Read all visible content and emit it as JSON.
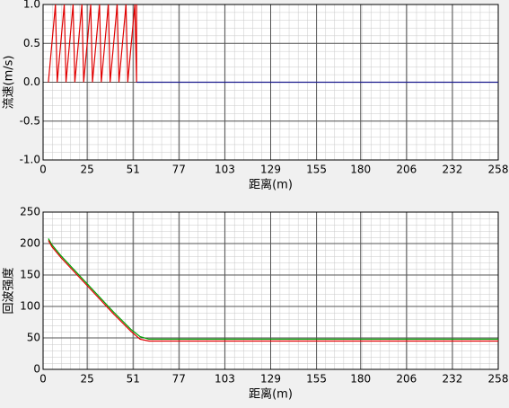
{
  "chart_data": [
    {
      "type": "line",
      "xlabel": "距离(m)",
      "ylabel": "流速(m/s)",
      "xlim": [
        0,
        258
      ],
      "xticks": [
        0,
        25,
        51,
        77,
        103,
        129,
        155,
        180,
        206,
        232,
        258
      ],
      "ylim": [
        -1,
        1
      ],
      "yticks": [
        {
          "value": -1,
          "label": "-1.0"
        },
        -0.5,
        {
          "value": 0,
          "label": "0.0"
        },
        0.5,
        {
          "value": 1,
          "label": "1.0"
        }
      ],
      "grid": true,
      "series": [
        {
          "color": "#e00000",
          "x": [
            3,
            7,
            8,
            12,
            13,
            17,
            18,
            22,
            23,
            27,
            28,
            32,
            33,
            37,
            38,
            42,
            43,
            47,
            48,
            52,
            53,
            53
          ],
          "values": [
            0,
            1,
            0,
            1,
            0,
            1,
            0,
            1,
            0,
            1,
            0,
            1,
            0,
            1,
            0,
            1,
            0,
            1,
            0,
            1,
            0,
            1
          ]
        },
        {
          "color": "#1a1a8c",
          "x": [
            53,
            258
          ],
          "values": [
            0,
            0
          ]
        }
      ]
    },
    {
      "type": "line",
      "xlabel": "距离(m)",
      "ylabel": "回波强度",
      "xlim": [
        0,
        258
      ],
      "xticks": [
        0,
        25,
        51,
        77,
        103,
        129,
        155,
        180,
        206,
        232,
        258
      ],
      "ylim": [
        0,
        250
      ],
      "yticks": [
        0,
        50,
        100,
        150,
        200,
        250
      ],
      "grid": true,
      "series": [
        {
          "color": "#00a000",
          "x": [
            3,
            5,
            10,
            20,
            30,
            40,
            50,
            55,
            60,
            258
          ],
          "values": [
            208,
            198,
            181,
            151,
            121,
            91,
            63,
            52,
            48,
            48
          ]
        },
        {
          "color": "#e00000",
          "x": [
            3,
            5,
            10,
            20,
            30,
            40,
            50,
            55,
            60,
            258
          ],
          "values": [
            205,
            195,
            178,
            148,
            118,
            88,
            60,
            48,
            45,
            45
          ]
        }
      ]
    }
  ]
}
